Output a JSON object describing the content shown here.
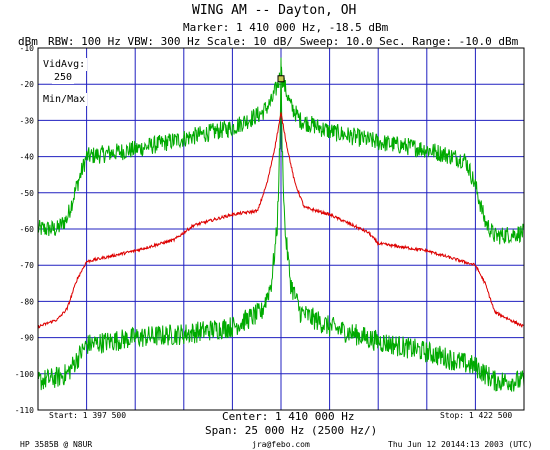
{
  "header": {
    "title": "WING AM -- Dayton, OH",
    "marker": "Marker: 1 410 000 Hz, -18.5 dBm",
    "ylabel_unit": "dBm",
    "settings": "RBW: 100 Hz  VBW: 300 Hz  Scale: 10 dB/  Sweep: 10.0 Sec.  Range: -10.0 dBm"
  },
  "overlay": {
    "vidavg_label": "VidAvg:",
    "vidavg_value": "250",
    "minmax_label": "Min/Max"
  },
  "footer": {
    "start": "Start: 1 397 500",
    "center": "Center: 1 410 000 Hz",
    "stop": "Stop: 1 422 500",
    "span": "Span: 25 000 Hz (2500 Hz/)",
    "instrument": "HP 3585B @ N8UR",
    "email": "jra@febo.com",
    "timestamp": "Thu Jun 12 20144:13 2003 (UTC)"
  },
  "chart_data": {
    "type": "line",
    "title": "WING AM -- Dayton, OH",
    "xlabel": "Center: 1 410 000 Hz",
    "ylabel": "dBm",
    "xlim": [
      1397500,
      1422500
    ],
    "ylim": [
      -110,
      -10
    ],
    "yticks": [
      -10,
      -20,
      -30,
      -40,
      -50,
      -60,
      -70,
      -80,
      -90,
      -100,
      -110
    ],
    "ytick_labels": [
      "-10",
      "-20",
      "-30",
      "-40",
      "-50",
      "-60",
      "-70",
      "-80",
      "-90",
      "-100",
      "-110"
    ],
    "grid": true,
    "marker": {
      "x": 1410000,
      "y": -18.5
    },
    "series": [
      {
        "color": "#00aa00",
        "noise": 2.5,
        "x": [
          1397500,
          1398500,
          1399000,
          1399500,
          1400000,
          1402500,
          1405000,
          1407500,
          1409000,
          1409500,
          1409900,
          1410000,
          1410100,
          1410500,
          1411000,
          1412500,
          1415000,
          1417500,
          1419500,
          1420000,
          1420500,
          1421000,
          1422500
        ],
        "values": [
          -60,
          -60,
          -57,
          -48,
          -40,
          -38,
          -35,
          -32,
          -28,
          -25,
          -19,
          -16,
          -19,
          -26,
          -30,
          -33,
          -36,
          -38,
          -41,
          -48,
          -58,
          -62,
          -61
        ]
      },
      {
        "color": "#00aa00",
        "noise": 3,
        "x": [
          1397500,
          1398500,
          1399000,
          1399500,
          1400000,
          1402500,
          1405000,
          1407500,
          1409000,
          1409500,
          1409800,
          1409950,
          1410000,
          1410050,
          1410200,
          1410500,
          1411000,
          1412500,
          1415000,
          1417500,
          1420000,
          1420500,
          1421000,
          1422500
        ],
        "values": [
          -102,
          -101,
          -100,
          -96,
          -92,
          -90,
          -89,
          -87,
          -83,
          -75,
          -60,
          -35,
          -15,
          -35,
          -60,
          -75,
          -83,
          -87,
          -91,
          -94,
          -98,
          -100,
          -102,
          -102
        ]
      },
      {
        "color": "#dd0000",
        "noise": 0.4,
        "x": [
          1397500,
          1398500,
          1399000,
          1399500,
          1400000,
          1402500,
          1404500,
          1405500,
          1407500,
          1408800,
          1409300,
          1409700,
          1409900,
          1410000,
          1410100,
          1410300,
          1410700,
          1411200,
          1412500,
          1414500,
          1415000,
          1417500,
          1420000,
          1420500,
          1421000,
          1422500
        ],
        "values": [
          -87,
          -85,
          -82,
          -74,
          -69,
          -66,
          -63,
          -59,
          -56,
          -55,
          -47,
          -37,
          -31,
          -28,
          -31,
          -37,
          -47,
          -54,
          -56,
          -61,
          -64,
          -66,
          -70,
          -75,
          -83,
          -87
        ]
      }
    ]
  }
}
